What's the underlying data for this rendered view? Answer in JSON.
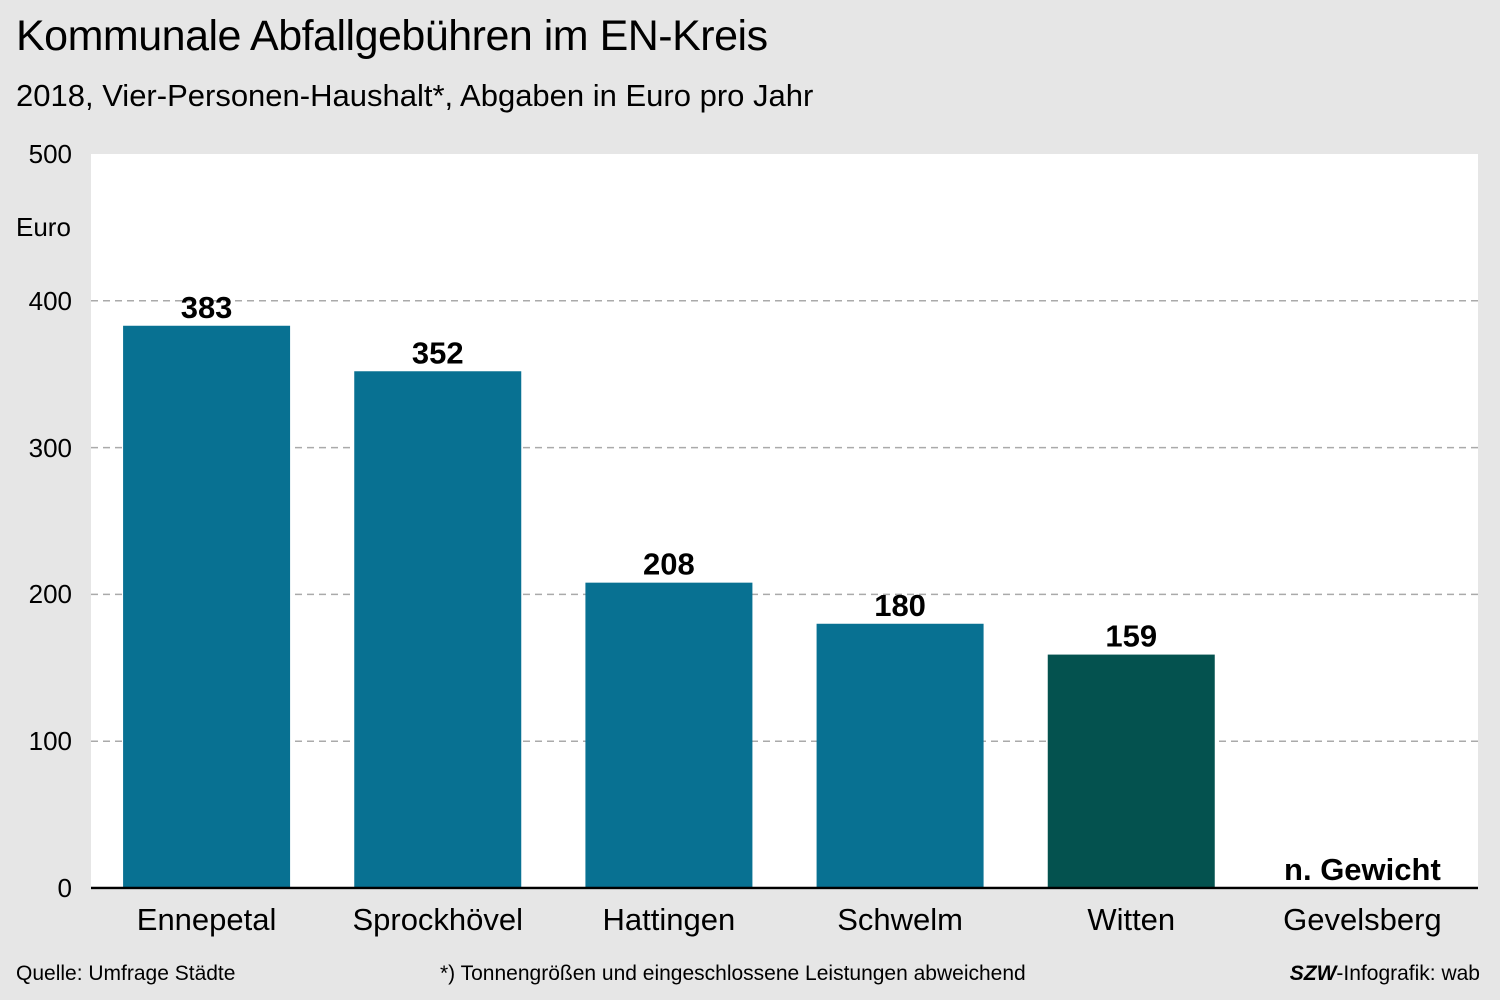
{
  "title": "Kommunale Abfallgebühren im EN-Kreis",
  "subtitle": "2018, Vier-Personen-Haushalt*, Abgaben in Euro pro Jahr",
  "y_unit": "Euro",
  "footer": {
    "source": "Quelle: Umfrage Städte",
    "note": "*) Tonnengrößen und eingeschlossene Leistungen abweichend",
    "credit_brand": "SZW",
    "credit_rest": "-Infografik: wab"
  },
  "colors": {
    "bar": "#087192",
    "highlight": "#04524f",
    "grid": "#aaaaaa",
    "plot_bg": "#ffffff",
    "page_bg": "#e6e6e6"
  },
  "chart_data": {
    "type": "bar",
    "categories": [
      "Ennepetal",
      "Sprockhövel",
      "Hattingen",
      "Schwelm",
      "Witten",
      "Gevelsberg"
    ],
    "values": [
      383,
      352,
      208,
      180,
      159,
      null
    ],
    "value_labels": [
      "383",
      "352",
      "208",
      "180",
      "159",
      "n. Gewicht"
    ],
    "highlight_index": 4,
    "title": "Kommunale Abfallgebühren im EN-Kreis",
    "subtitle": "2018, Vier-Personen-Haushalt*, Abgaben in Euro pro Jahr",
    "ylabel": "Euro",
    "ylim": [
      0,
      500
    ],
    "yticks": [
      0,
      100,
      200,
      300,
      400,
      500
    ],
    "grid": true
  }
}
